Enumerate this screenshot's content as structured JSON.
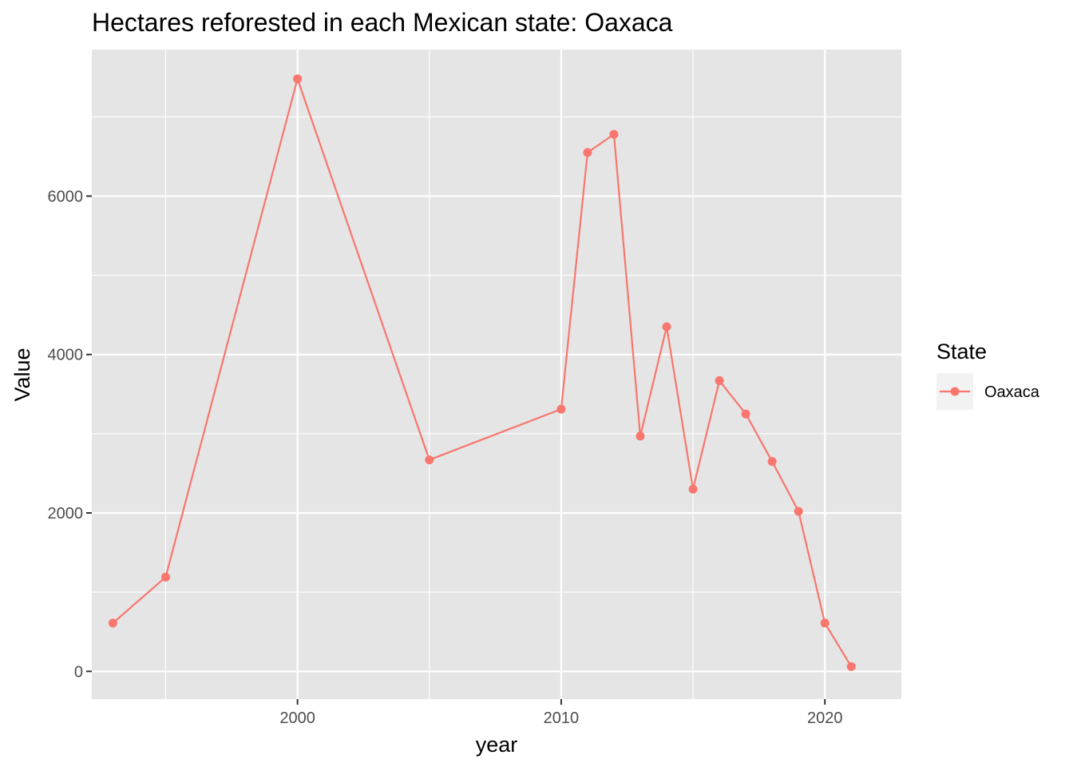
{
  "chart_data": {
    "type": "line",
    "title": "Hectares reforested in each Mexican state: Oaxaca",
    "xlabel": "year",
    "ylabel": "Value",
    "xlim": [
      1992.2,
      2022.9
    ],
    "ylim": [
      -350,
      7850
    ],
    "x_ticks": [
      2000,
      2010,
      2020
    ],
    "x_tick_labels": [
      "2000",
      "2010",
      "2020"
    ],
    "x_minor_ticks": [
      1995,
      2005,
      2015
    ],
    "y_ticks": [
      0,
      2000,
      4000,
      6000
    ],
    "y_tick_labels": [
      "0",
      "2000",
      "4000",
      "6000"
    ],
    "y_minor_ticks": [
      1000,
      3000,
      5000,
      7000
    ],
    "grid": true,
    "panel_background": "#e5e5e5",
    "legend": {
      "title": "State",
      "position": "right",
      "entries": [
        "Oaxaca"
      ]
    },
    "series": [
      {
        "name": "Oaxaca",
        "color": "#f8766d",
        "x": [
          1993,
          1995,
          2000,
          2005,
          2010,
          2011,
          2012,
          2013,
          2014,
          2015,
          2016,
          2017,
          2018,
          2019,
          2020,
          2021
        ],
        "values": [
          610,
          1190,
          7480,
          2670,
          3310,
          6550,
          6780,
          2970,
          4350,
          2300,
          3670,
          3250,
          2650,
          2020,
          610,
          60
        ]
      }
    ]
  }
}
